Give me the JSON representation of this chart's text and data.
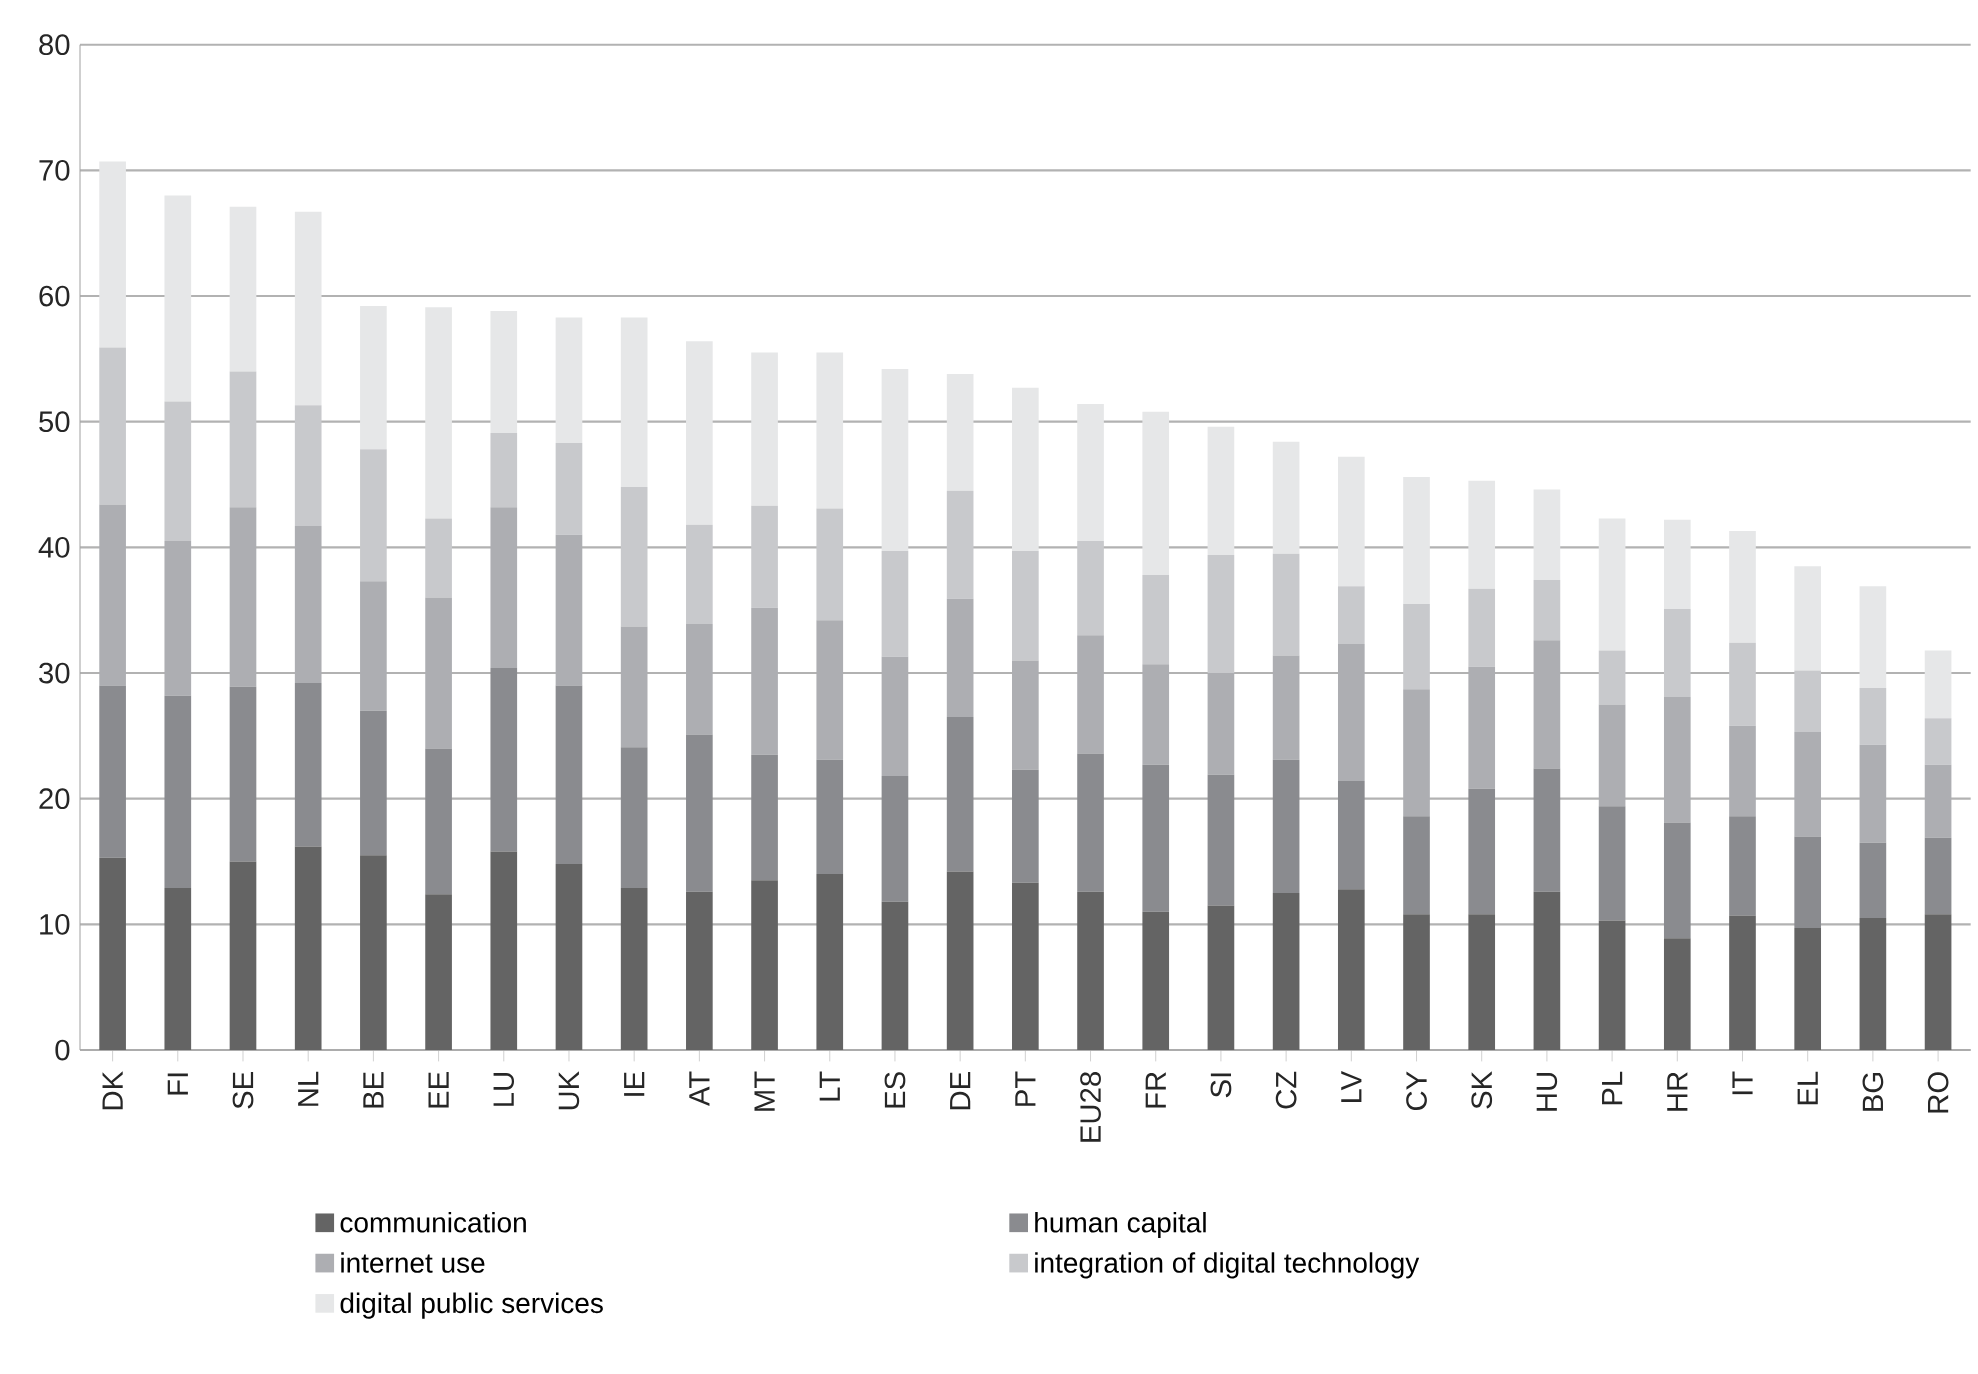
{
  "chart_data": {
    "type": "bar",
    "stacked": true,
    "grid": "y",
    "legend": "bottom",
    "categories": [
      "DK",
      "FI",
      "SE",
      "NL",
      "BE",
      "EE",
      "LU",
      "UK",
      "IE",
      "AT",
      "MT",
      "LT",
      "ES",
      "DE",
      "PT",
      "EU28",
      "FR",
      "SI",
      "CZ",
      "LV",
      "CY",
      "SK",
      "HU",
      "PL",
      "HR",
      "IT",
      "EL",
      "BG",
      "RO"
    ],
    "ylim": [
      0,
      80
    ],
    "yticks": [
      0,
      10,
      20,
      30,
      40,
      50,
      60,
      70,
      80
    ],
    "series": [
      {
        "name": "communication",
        "color": "#646464",
        "values": [
          15.3,
          12.9,
          15.0,
          16.2,
          15.5,
          12.4,
          15.8,
          14.8,
          12.9,
          12.6,
          13.5,
          14.0,
          11.8,
          14.2,
          13.3,
          12.6,
          11.0,
          11.5,
          12.5,
          12.8,
          10.8,
          10.8,
          12.6,
          10.3,
          8.9,
          10.7,
          9.7,
          10.5,
          10.8
        ]
      },
      {
        "name": "human capital",
        "color": "#8a8b8f",
        "values": [
          13.7,
          15.3,
          13.9,
          13.0,
          11.5,
          11.6,
          14.6,
          14.2,
          11.2,
          12.5,
          10.0,
          9.1,
          10.0,
          12.3,
          9.0,
          11.0,
          11.7,
          10.4,
          10.6,
          8.6,
          7.8,
          10.0,
          9.8,
          9.1,
          9.2,
          7.9,
          7.3,
          6.0,
          6.1
        ]
      },
      {
        "name": "internet use",
        "color": "#adaeb2",
        "values": [
          14.4,
          12.3,
          14.3,
          12.5,
          10.3,
          12.0,
          12.8,
          12.0,
          9.6,
          8.8,
          11.7,
          11.1,
          9.5,
          9.4,
          8.7,
          9.4,
          8.0,
          8.1,
          8.3,
          10.9,
          10.1,
          9.7,
          10.2,
          8.1,
          10.0,
          7.2,
          8.3,
          7.8,
          5.8
        ]
      },
      {
        "name": "integration of digital technology",
        "color": "#c8c9cc",
        "values": [
          12.5,
          11.1,
          10.8,
          9.6,
          10.5,
          6.3,
          5.9,
          7.3,
          11.1,
          7.9,
          8.1,
          8.9,
          8.4,
          8.6,
          8.7,
          7.5,
          7.1,
          9.4,
          8.1,
          4.6,
          6.8,
          6.2,
          4.8,
          4.3,
          7.0,
          6.6,
          4.9,
          4.5,
          3.7
        ]
      },
      {
        "name": "digital public services",
        "color": "#e6e7e8",
        "values": [
          14.8,
          16.4,
          13.1,
          15.4,
          11.4,
          16.8,
          9.7,
          10.0,
          13.5,
          14.6,
          12.2,
          12.4,
          14.5,
          9.3,
          13.0,
          10.9,
          13.0,
          10.2,
          8.9,
          10.3,
          10.1,
          8.6,
          7.2,
          10.5,
          7.1,
          8.9,
          8.3,
          8.1,
          5.4
        ]
      }
    ]
  }
}
